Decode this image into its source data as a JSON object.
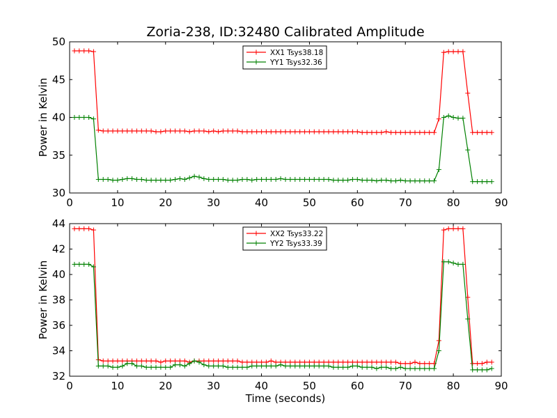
{
  "chart_data": [
    {
      "type": "line",
      "title": "Zoria-238, ID:32480 Calibrated Amplitude",
      "xlabel": "",
      "ylabel": "Power in Kelvin",
      "xlim": [
        0,
        90
      ],
      "ylim": [
        30,
        50
      ],
      "xticks": [
        "0",
        "10",
        "20",
        "30",
        "40",
        "50",
        "60",
        "70",
        "80",
        "90"
      ],
      "yticks": [
        "30",
        "35",
        "40",
        "45",
        "50"
      ],
      "grid": false,
      "legend_position": "top-center",
      "series": [
        {
          "name": "XX1 Tsys38.18",
          "color": "#ff0000",
          "x": [
            1,
            2,
            3,
            4,
            5,
            6,
            7,
            8,
            9,
            10,
            11,
            12,
            13,
            14,
            15,
            16,
            17,
            18,
            19,
            20,
            21,
            22,
            23,
            24,
            25,
            26,
            27,
            28,
            29,
            30,
            31,
            32,
            33,
            34,
            35,
            36,
            37,
            38,
            39,
            40,
            41,
            42,
            43,
            44,
            45,
            46,
            47,
            48,
            49,
            50,
            51,
            52,
            53,
            54,
            55,
            56,
            57,
            58,
            59,
            60,
            61,
            62,
            63,
            64,
            65,
            66,
            67,
            68,
            69,
            70,
            71,
            72,
            73,
            74,
            75,
            76,
            77,
            78,
            79,
            80,
            81,
            82,
            83,
            84,
            85,
            86,
            87,
            88
          ],
          "y": [
            48.8,
            48.8,
            48.8,
            48.8,
            48.7,
            38.3,
            38.2,
            38.2,
            38.2,
            38.2,
            38.2,
            38.2,
            38.2,
            38.2,
            38.2,
            38.2,
            38.2,
            38.1,
            38.1,
            38.2,
            38.2,
            38.2,
            38.2,
            38.2,
            38.1,
            38.2,
            38.2,
            38.2,
            38.1,
            38.2,
            38.1,
            38.2,
            38.2,
            38.2,
            38.2,
            38.1,
            38.1,
            38.1,
            38.1,
            38.1,
            38.1,
            38.1,
            38.1,
            38.1,
            38.1,
            38.1,
            38.1,
            38.1,
            38.1,
            38.1,
            38.1,
            38.1,
            38.1,
            38.1,
            38.1,
            38.1,
            38.1,
            38.1,
            38.1,
            38.1,
            38.0,
            38.0,
            38.0,
            38.0,
            38.0,
            38.1,
            38.0,
            38.0,
            38.0,
            38.0,
            38.0,
            38.0,
            38.0,
            38.0,
            38.0,
            38.0,
            39.8,
            48.6,
            48.7,
            48.7,
            48.7,
            48.7,
            43.2,
            38.0,
            38.0,
            38.0,
            38.0,
            38.0
          ]
        },
        {
          "name": "YY1 Tsys32.36",
          "color": "#008000",
          "x": [
            1,
            2,
            3,
            4,
            5,
            6,
            7,
            8,
            9,
            10,
            11,
            12,
            13,
            14,
            15,
            16,
            17,
            18,
            19,
            20,
            21,
            22,
            23,
            24,
            25,
            26,
            27,
            28,
            29,
            30,
            31,
            32,
            33,
            34,
            35,
            36,
            37,
            38,
            39,
            40,
            41,
            42,
            43,
            44,
            45,
            46,
            47,
            48,
            49,
            50,
            51,
            52,
            53,
            54,
            55,
            56,
            57,
            58,
            59,
            60,
            61,
            62,
            63,
            64,
            65,
            66,
            67,
            68,
            69,
            70,
            71,
            72,
            73,
            74,
            75,
            76,
            77,
            78,
            79,
            80,
            81,
            82,
            83,
            84,
            85,
            86,
            87,
            88
          ],
          "y": [
            40.0,
            40.0,
            40.0,
            40.0,
            39.8,
            31.8,
            31.8,
            31.8,
            31.7,
            31.7,
            31.8,
            31.9,
            31.9,
            31.8,
            31.8,
            31.7,
            31.7,
            31.7,
            31.7,
            31.7,
            31.7,
            31.8,
            31.9,
            31.8,
            32.0,
            32.2,
            32.1,
            31.9,
            31.8,
            31.8,
            31.8,
            31.8,
            31.7,
            31.7,
            31.7,
            31.8,
            31.8,
            31.7,
            31.8,
            31.8,
            31.8,
            31.8,
            31.8,
            31.9,
            31.8,
            31.8,
            31.8,
            31.8,
            31.8,
            31.8,
            31.8,
            31.8,
            31.8,
            31.8,
            31.7,
            31.7,
            31.7,
            31.7,
            31.8,
            31.8,
            31.7,
            31.7,
            31.7,
            31.6,
            31.7,
            31.7,
            31.6,
            31.6,
            31.7,
            31.6,
            31.6,
            31.6,
            31.6,
            31.6,
            31.6,
            31.6,
            33.1,
            40.0,
            40.2,
            40.0,
            39.9,
            39.9,
            35.7,
            31.5,
            31.5,
            31.5,
            31.5,
            31.5
          ]
        }
      ]
    },
    {
      "type": "line",
      "title": "",
      "xlabel": "Time (seconds)",
      "ylabel": "Power in Kelvin",
      "xlim": [
        0,
        90
      ],
      "ylim": [
        32,
        44
      ],
      "xticks": [
        "0",
        "10",
        "20",
        "30",
        "40",
        "50",
        "60",
        "70",
        "80",
        "90"
      ],
      "yticks": [
        "32",
        "34",
        "36",
        "38",
        "40",
        "42",
        "44"
      ],
      "grid": false,
      "legend_position": "top-center",
      "series": [
        {
          "name": "XX2 Tsys33.22",
          "color": "#ff0000",
          "x": [
            1,
            2,
            3,
            4,
            5,
            6,
            7,
            8,
            9,
            10,
            11,
            12,
            13,
            14,
            15,
            16,
            17,
            18,
            19,
            20,
            21,
            22,
            23,
            24,
            25,
            26,
            27,
            28,
            29,
            30,
            31,
            32,
            33,
            34,
            35,
            36,
            37,
            38,
            39,
            40,
            41,
            42,
            43,
            44,
            45,
            46,
            47,
            48,
            49,
            50,
            51,
            52,
            53,
            54,
            55,
            56,
            57,
            58,
            59,
            60,
            61,
            62,
            63,
            64,
            65,
            66,
            67,
            68,
            69,
            70,
            71,
            72,
            73,
            74,
            75,
            76,
            77,
            78,
            79,
            80,
            81,
            82,
            83,
            84,
            85,
            86,
            87,
            88
          ],
          "y": [
            43.6,
            43.6,
            43.6,
            43.6,
            43.5,
            33.3,
            33.2,
            33.2,
            33.2,
            33.2,
            33.2,
            33.2,
            33.2,
            33.2,
            33.2,
            33.2,
            33.2,
            33.2,
            33.1,
            33.2,
            33.2,
            33.2,
            33.2,
            33.2,
            33.1,
            33.2,
            33.2,
            33.2,
            33.2,
            33.2,
            33.2,
            33.2,
            33.2,
            33.2,
            33.2,
            33.1,
            33.1,
            33.1,
            33.1,
            33.1,
            33.1,
            33.2,
            33.1,
            33.1,
            33.1,
            33.1,
            33.1,
            33.1,
            33.1,
            33.1,
            33.1,
            33.1,
            33.1,
            33.1,
            33.1,
            33.1,
            33.1,
            33.1,
            33.1,
            33.1,
            33.1,
            33.1,
            33.1,
            33.1,
            33.1,
            33.1,
            33.1,
            33.1,
            33.0,
            33.0,
            33.0,
            33.1,
            33.0,
            33.0,
            33.0,
            33.0,
            34.8,
            43.5,
            43.6,
            43.6,
            43.6,
            43.6,
            38.2,
            33.0,
            33.0,
            33.0,
            33.1,
            33.1
          ]
        },
        {
          "name": "YY2 Tsys33.39",
          "color": "#008000",
          "x": [
            1,
            2,
            3,
            4,
            5,
            6,
            7,
            8,
            9,
            10,
            11,
            12,
            13,
            14,
            15,
            16,
            17,
            18,
            19,
            20,
            21,
            22,
            23,
            24,
            25,
            26,
            27,
            28,
            29,
            30,
            31,
            32,
            33,
            34,
            35,
            36,
            37,
            38,
            39,
            40,
            41,
            42,
            43,
            44,
            45,
            46,
            47,
            48,
            49,
            50,
            51,
            52,
            53,
            54,
            55,
            56,
            57,
            58,
            59,
            60,
            61,
            62,
            63,
            64,
            65,
            66,
            67,
            68,
            69,
            70,
            71,
            72,
            73,
            74,
            75,
            76,
            77,
            78,
            79,
            80,
            81,
            82,
            83,
            84,
            85,
            86,
            87,
            88
          ],
          "y": [
            40.8,
            40.8,
            40.8,
            40.8,
            40.6,
            32.8,
            32.8,
            32.8,
            32.7,
            32.7,
            32.8,
            33.0,
            33.0,
            32.8,
            32.8,
            32.7,
            32.7,
            32.7,
            32.7,
            32.7,
            32.7,
            32.9,
            32.9,
            32.8,
            33.0,
            33.2,
            33.1,
            32.9,
            32.8,
            32.8,
            32.8,
            32.8,
            32.7,
            32.7,
            32.7,
            32.7,
            32.7,
            32.8,
            32.8,
            32.8,
            32.8,
            32.8,
            32.8,
            32.9,
            32.8,
            32.8,
            32.8,
            32.8,
            32.8,
            32.8,
            32.8,
            32.8,
            32.8,
            32.8,
            32.7,
            32.7,
            32.7,
            32.7,
            32.8,
            32.8,
            32.7,
            32.7,
            32.7,
            32.6,
            32.7,
            32.7,
            32.6,
            32.6,
            32.7,
            32.6,
            32.6,
            32.6,
            32.6,
            32.6,
            32.6,
            32.6,
            34.0,
            41.0,
            41.0,
            40.9,
            40.8,
            40.8,
            36.5,
            32.5,
            32.5,
            32.5,
            32.5,
            32.6
          ]
        }
      ]
    }
  ]
}
